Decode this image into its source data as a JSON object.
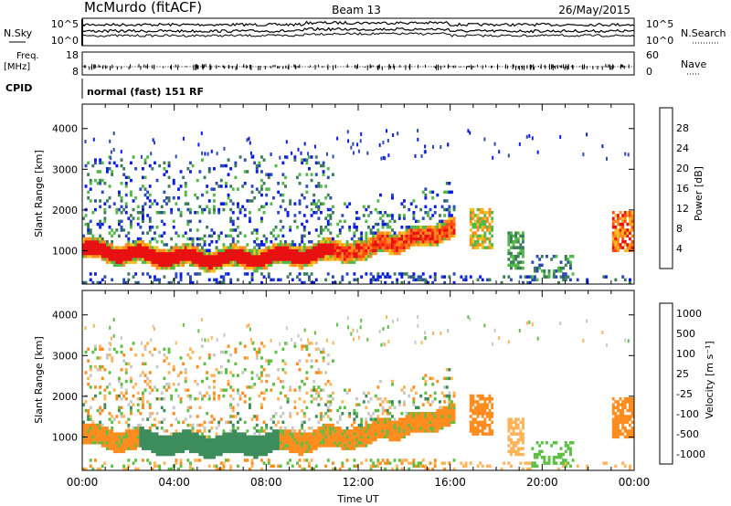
{
  "header": {
    "station": "McMurdo (fitACF)",
    "beam": "Beam 13",
    "date": "26/May/2015"
  },
  "noise_panel": {
    "left_label": "N.Sky",
    "right_label": "N.Search",
    "left_ticks": [
      "10^5",
      "10^0"
    ],
    "right_ticks": [
      "10^5",
      "10^0"
    ]
  },
  "freq_panel": {
    "left_label": "Freq.",
    "left_unit": "[MHz]",
    "right_label": "Nave",
    "left_ticks": [
      "18",
      "8"
    ],
    "right_ticks": [
      "60",
      "0"
    ]
  },
  "cpid_panel": {
    "label": "CPID",
    "text": "normal (fast) 151 RF"
  },
  "chart_data": [
    {
      "type": "heatmap",
      "name": "power",
      "ylabel": "Slant Range [km]",
      "ylim": [
        180,
        4600
      ],
      "yticks": [
        "1000",
        "2000",
        "3000",
        "4000"
      ],
      "ytick_values": [
        1000,
        2000,
        3000,
        4000
      ],
      "xlim_hours": [
        0,
        24
      ],
      "colorbar": {
        "label": "Power [dB]",
        "ticks": [
          "4",
          "8",
          "12",
          "16",
          "20",
          "24",
          "28"
        ],
        "tick_values": [
          4,
          8,
          12,
          16,
          20,
          24,
          28
        ],
        "range": [
          0,
          32
        ],
        "colors": [
          "#0b1be6",
          "#2b4ab8",
          "#3d7c58",
          "#52b948",
          "#f2c21c",
          "#ff8a1e",
          "#ff4a14",
          "#e81010"
        ]
      }
    },
    {
      "type": "heatmap",
      "name": "velocity",
      "ylabel": "Slant Range [km]",
      "ylim": [
        180,
        4600
      ],
      "yticks": [
        "1000",
        "2000",
        "3000",
        "4000"
      ],
      "ytick_values": [
        1000,
        2000,
        3000,
        4000
      ],
      "xlim_hours": [
        0,
        24
      ],
      "xlabel": "Time UT",
      "xticks": [
        "00:00",
        "04:00",
        "08:00",
        "12:00",
        "16:00",
        "20:00",
        "00:00"
      ],
      "xtick_hours": [
        0,
        4,
        8,
        12,
        16,
        20,
        24
      ],
      "colorbar": {
        "label": "Velocity [m s⁻¹]",
        "ticks": [
          "1000",
          "500",
          "100",
          "25",
          "-25",
          "-100",
          "-500",
          "-1000"
        ],
        "colors": [
          "#2b3fc4",
          "#3c8c5c",
          "#5cc044",
          "#c8c8c8",
          "#ffb45a",
          "#ff8c1e",
          "#ff5014",
          "#e81010"
        ]
      }
    }
  ]
}
